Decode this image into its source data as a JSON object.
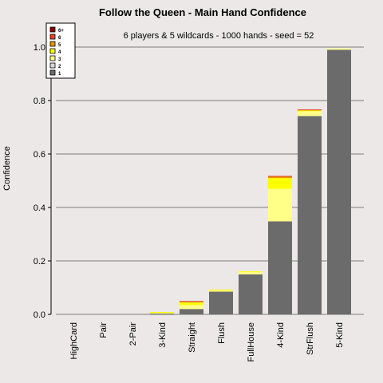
{
  "chart_data": {
    "type": "bar",
    "stacked": true,
    "title": "Follow the Queen  - Main Hand Confidence",
    "subtitle": "6 players & 5 wildcards - 1000 hands - seed = 52",
    "ylabel": "Confidence",
    "xlabel": "",
    "ylim": [
      0,
      1.05
    ],
    "yticks": [
      "0.0",
      "0.2",
      "0.4",
      "0.6",
      "0.8",
      "1.0"
    ],
    "grid": true,
    "legend_position": "top-left",
    "categories": [
      "HighCard",
      "Pair",
      "2-Pair",
      "3-Kind",
      "Straight",
      "Flush",
      "FullHouse",
      "4-Kind",
      "StrFlush",
      "5-Kind"
    ],
    "series": [
      {
        "name": "1",
        "color": "#6b6b6b",
        "values": [
          0,
          0,
          0,
          0.003,
          0.02,
          0.085,
          0.15,
          0.348,
          0.742,
          0.99
        ]
      },
      {
        "name": "2",
        "color": "#d9d9d9",
        "values": [
          0,
          0,
          0,
          0,
          0,
          0,
          0,
          0,
          0,
          0
        ]
      },
      {
        "name": "3",
        "color": "#ffff88",
        "values": [
          0,
          0,
          0,
          0.003,
          0.015,
          0.005,
          0.008,
          0.122,
          0.018,
          0.005
        ]
      },
      {
        "name": "4",
        "color": "#ffff00",
        "values": [
          0,
          0,
          0,
          0.003,
          0.01,
          0.003,
          0.003,
          0.04,
          0.003,
          0
        ]
      },
      {
        "name": "5",
        "color": "#e69500",
        "values": [
          0,
          0,
          0,
          0,
          0.002,
          0,
          0,
          0.005,
          0.002,
          0
        ]
      },
      {
        "name": "6",
        "color": "#e8402a",
        "values": [
          0,
          0,
          0,
          0,
          0.003,
          0,
          0,
          0.003,
          0.002,
          0
        ]
      },
      {
        "name": "6+",
        "color": "#8b0000",
        "values": [
          0,
          0,
          0,
          0,
          0,
          0,
          0,
          0,
          0,
          0
        ]
      }
    ]
  }
}
